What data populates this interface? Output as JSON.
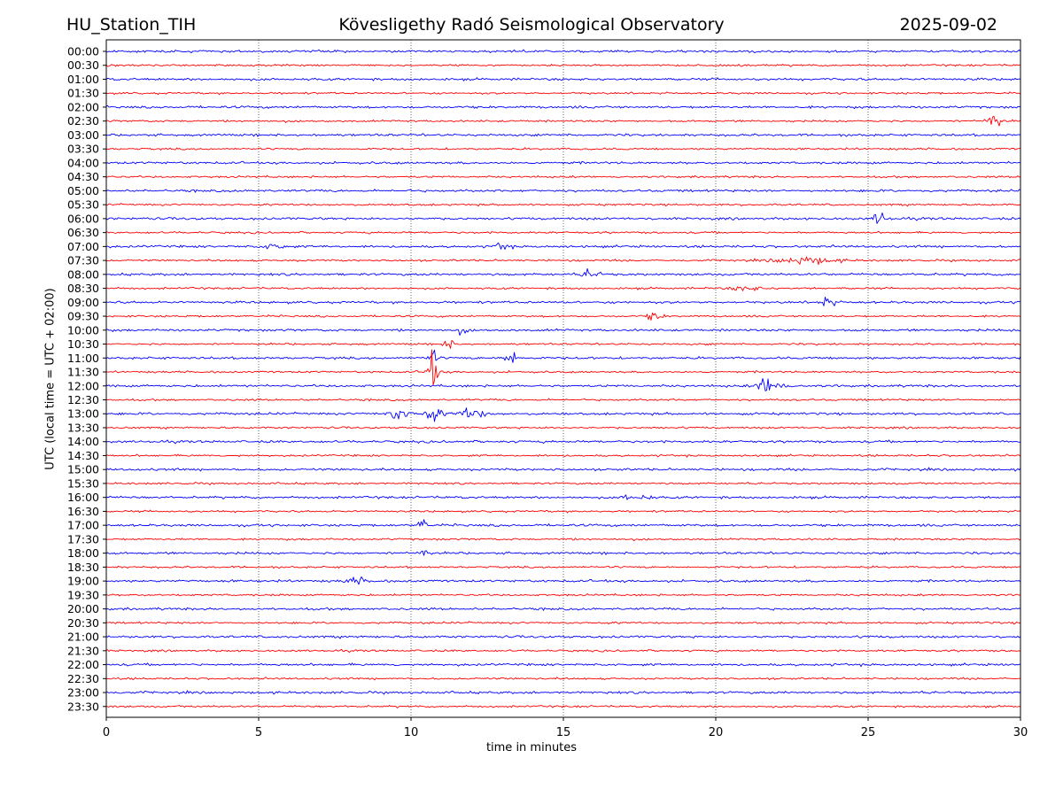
{
  "header": {
    "station": "HU_Station_TIH",
    "observatory": "Kövesligethy Radó Seismological Observatory",
    "date": "2025-09-02"
  },
  "chart_data": {
    "type": "line",
    "xlabel": "time in minutes",
    "ylabel": "UTC (local time = UTC + 02:00)",
    "xlim": [
      0,
      30
    ],
    "xticks": [
      "0",
      "5",
      "10",
      "15",
      "20",
      "25",
      "30"
    ],
    "grid": "vertical dotted at each x tick",
    "colors": {
      "even_rows": "#0000ff",
      "odd_rows": "#ff0000"
    },
    "rows": [
      {
        "label": "00:00",
        "events": []
      },
      {
        "label": "00:30",
        "events": []
      },
      {
        "label": "01:00",
        "events": []
      },
      {
        "label": "01:30",
        "events": []
      },
      {
        "label": "02:00",
        "events": []
      },
      {
        "label": "02:30",
        "events": [
          {
            "t": 29.1,
            "amp": 10,
            "dur": 0.3
          }
        ]
      },
      {
        "label": "03:00",
        "events": []
      },
      {
        "label": "03:30",
        "events": []
      },
      {
        "label": "04:00",
        "events": []
      },
      {
        "label": "04:30",
        "events": []
      },
      {
        "label": "05:00",
        "events": []
      },
      {
        "label": "05:30",
        "events": []
      },
      {
        "label": "06:00",
        "events": [
          {
            "t": 25.4,
            "amp": 9,
            "dur": 0.25
          }
        ]
      },
      {
        "label": "06:30",
        "events": []
      },
      {
        "label": "07:00",
        "events": [
          {
            "t": 13.0,
            "amp": 4,
            "dur": 0.3
          },
          {
            "t": 5.5,
            "amp": 3,
            "dur": 0.5
          }
        ]
      },
      {
        "label": "07:30",
        "events": [
          {
            "t": 23.0,
            "amp": 4,
            "dur": 1.2
          }
        ]
      },
      {
        "label": "08:00",
        "events": [
          {
            "t": 15.9,
            "amp": 7,
            "dur": 0.3
          }
        ]
      },
      {
        "label": "08:30",
        "events": [
          {
            "t": 21.0,
            "amp": 3,
            "dur": 0.6
          }
        ]
      },
      {
        "label": "09:00",
        "events": [
          {
            "t": 23.7,
            "amp": 8,
            "dur": 0.25
          }
        ]
      },
      {
        "label": "09:30",
        "events": [
          {
            "t": 18.0,
            "amp": 5,
            "dur": 0.3
          }
        ]
      },
      {
        "label": "10:00",
        "events": [
          {
            "t": 11.7,
            "amp": 4,
            "dur": 0.2
          }
        ]
      },
      {
        "label": "10:30",
        "events": [
          {
            "t": 11.2,
            "amp": 8,
            "dur": 0.2
          }
        ]
      },
      {
        "label": "11:00",
        "events": [
          {
            "t": 13.3,
            "amp": 10,
            "dur": 0.3
          },
          {
            "t": 10.7,
            "amp": 8,
            "dur": 0.2
          }
        ]
      },
      {
        "label": "11:30",
        "events": [
          {
            "t": 10.7,
            "amp": 18,
            "dur": 0.25
          }
        ]
      },
      {
        "label": "12:00",
        "events": [
          {
            "t": 21.6,
            "amp": 9,
            "dur": 0.3
          },
          {
            "t": 22.1,
            "amp": 5,
            "dur": 0.3
          }
        ]
      },
      {
        "label": "12:30",
        "events": []
      },
      {
        "label": "13:00",
        "events": [
          {
            "t": 9.6,
            "amp": 8,
            "dur": 0.4
          },
          {
            "t": 10.7,
            "amp": 7,
            "dur": 0.4
          },
          {
            "t": 12.0,
            "amp": 6,
            "dur": 0.5
          }
        ]
      },
      {
        "label": "13:30",
        "events": []
      },
      {
        "label": "14:00",
        "events": []
      },
      {
        "label": "14:30",
        "events": []
      },
      {
        "label": "15:00",
        "events": []
      },
      {
        "label": "15:30",
        "events": []
      },
      {
        "label": "16:00",
        "events": [
          {
            "t": 17.1,
            "amp": 6,
            "dur": 0.15
          },
          {
            "t": 17.7,
            "amp": 4,
            "dur": 0.2
          }
        ]
      },
      {
        "label": "16:30",
        "events": []
      },
      {
        "label": "17:00",
        "events": [
          {
            "t": 10.4,
            "amp": 7,
            "dur": 0.2
          }
        ]
      },
      {
        "label": "17:30",
        "events": []
      },
      {
        "label": "18:00",
        "events": [
          {
            "t": 10.4,
            "amp": 6,
            "dur": 0.2
          }
        ]
      },
      {
        "label": "18:30",
        "events": []
      },
      {
        "label": "19:00",
        "events": [
          {
            "t": 8.2,
            "amp": 4,
            "dur": 0.4
          }
        ]
      },
      {
        "label": "19:30",
        "events": []
      },
      {
        "label": "20:00",
        "events": []
      },
      {
        "label": "20:30",
        "events": []
      },
      {
        "label": "21:00",
        "events": []
      },
      {
        "label": "21:30",
        "events": []
      },
      {
        "label": "22:00",
        "events": []
      },
      {
        "label": "22:30",
        "events": []
      },
      {
        "label": "23:00",
        "events": []
      },
      {
        "label": "23:30",
        "events": []
      }
    ]
  }
}
